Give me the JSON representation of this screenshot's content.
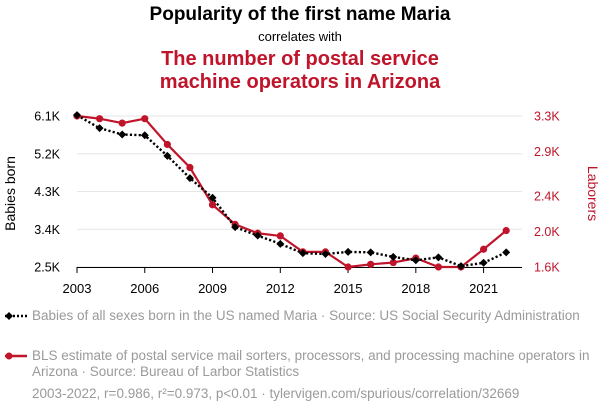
{
  "title": "Popularity of the first name Maria",
  "subtitle": "correlates with",
  "title2_line1": "The number of postal service",
  "title2_line2": "machine operators in Arizona",
  "legend": {
    "series1": "Babies of all sexes born in the US named Maria · Source: US Social Security Administration",
    "series2": "BLS estimate of postal service mail sorters, processors, and processing machine operators in Arizona · Source: Bureau of Larbor Statistics"
  },
  "footer": "2003-2022, r=0.986, r²=0.973, p<0.01 · tylervigen.com/spurious/correlation/32669",
  "colors": {
    "series1": "#000000",
    "series2": "#c0142b",
    "grid": "#e6e6e6",
    "tick": "#000000"
  },
  "chart_data": {
    "type": "line",
    "x": [
      2003,
      2004,
      2005,
      2006,
      2007,
      2008,
      2009,
      2010,
      2011,
      2012,
      2013,
      2014,
      2015,
      2016,
      2017,
      2018,
      2019,
      2020,
      2021,
      2022
    ],
    "xticks": [
      2003,
      2006,
      2009,
      2012,
      2015,
      2018,
      2021
    ],
    "xlim": [
      2003,
      2022.7
    ],
    "y_left": {
      "label": "Babies born",
      "ticks": [
        2500,
        3400,
        4300,
        5200,
        6100
      ],
      "tick_labels": [
        "2.5K",
        "3.4K",
        "4.3K",
        "5.2K",
        "6.1K"
      ],
      "lim": [
        2500,
        6100
      ]
    },
    "y_right": {
      "label": "Laborers",
      "ticks": [
        1600,
        2000,
        2400,
        2900,
        3300
      ],
      "tick_labels": [
        "1.6K",
        "2.0K",
        "2.4K",
        "2.9K",
        "3.3K"
      ],
      "lim": [
        1600,
        3300
      ]
    },
    "grid": true,
    "series": [
      {
        "name": "Babies of all sexes born in the US named Maria",
        "axis": "left",
        "style": "dotted",
        "marker": "diamond",
        "values": [
          6120,
          5810,
          5660,
          5640,
          5150,
          4620,
          4150,
          3450,
          3250,
          3050,
          2830,
          2810,
          2860,
          2850,
          2740,
          2660,
          2730,
          2520,
          2600,
          2850
        ]
      },
      {
        "name": "BLS estimate of postal service mail sorters, processors, and processing machine operators in Arizona",
        "axis": "right",
        "style": "solid",
        "marker": "circle",
        "values": [
          3300,
          3270,
          3220,
          3270,
          2980,
          2720,
          2300,
          2080,
          1980,
          1950,
          1770,
          1770,
          1600,
          1630,
          1650,
          1700,
          1600,
          1600,
          1800,
          2010
        ]
      }
    ]
  }
}
